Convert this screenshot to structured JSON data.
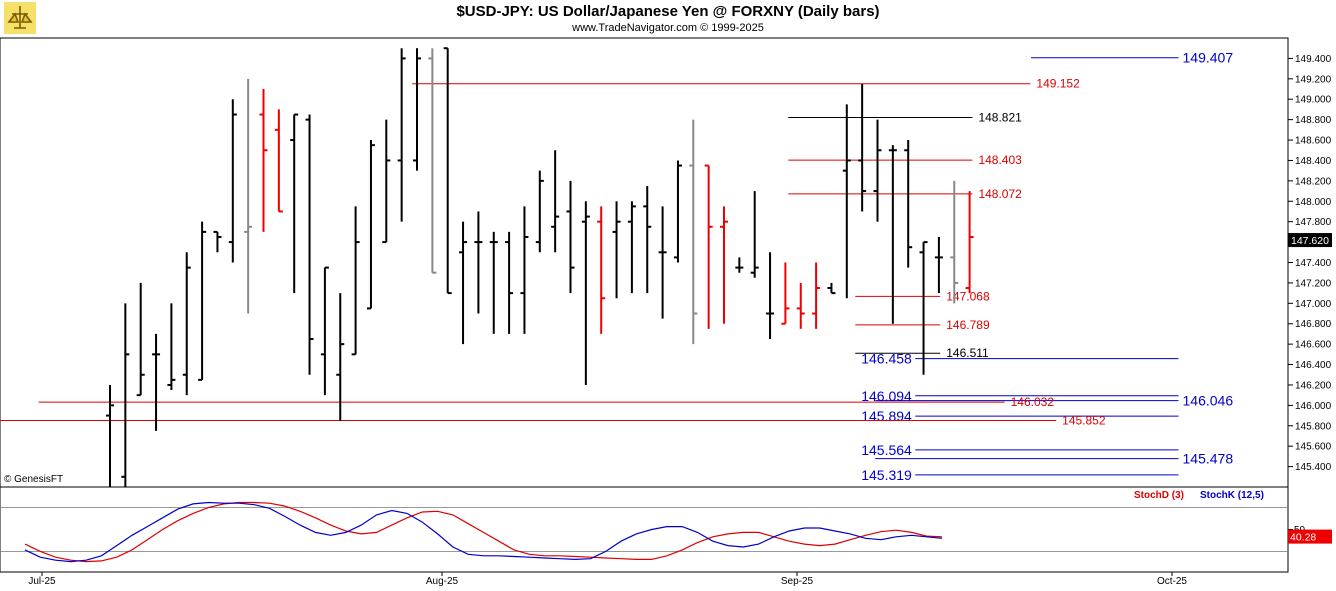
{
  "header": {
    "title": "$USD-JPY:  US Dollar/Japanese Yen @ FORXNY  (Daily bars)",
    "subtitle": "www.TradeNavigator.com © 1999-2025"
  },
  "copyright": "© GenesisFT",
  "colors": {
    "up": "#000000",
    "down": "#ee0000",
    "neutral": "#888888",
    "blue": "#0000cc",
    "red": "#dd0000"
  },
  "chart_data": [
    {
      "type": "ohlc",
      "ylim": [
        145.2,
        149.6
      ],
      "y_ticks": [
        "149.400",
        "149.200",
        "149.000",
        "148.800",
        "148.600",
        "148.400",
        "148.200",
        "148.000",
        "147.800",
        "147.600",
        "147.400",
        "147.200",
        "147.000",
        "146.800",
        "146.600",
        "146.400",
        "146.200",
        "146.000",
        "145.800",
        "145.600",
        "145.400"
      ],
      "x_ticks": [
        "Jul-25",
        "Aug-25",
        "Sep-25",
        "Oct-25"
      ],
      "last_price": "147.620",
      "bars": [
        {
          "o": 145.9,
          "h": 146.2,
          "l": 145.2,
          "c": 146.0,
          "k": "u"
        },
        {
          "o": 145.3,
          "h": 147.0,
          "l": 145.2,
          "c": 146.5,
          "k": "u"
        },
        {
          "o": 146.1,
          "h": 147.2,
          "l": 146.1,
          "c": 146.3,
          "k": "u"
        },
        {
          "o": 146.5,
          "h": 146.7,
          "l": 145.75,
          "c": 146.5,
          "k": "u"
        },
        {
          "o": 146.2,
          "h": 147.0,
          "l": 146.15,
          "c": 146.25,
          "k": "u"
        },
        {
          "o": 146.3,
          "h": 147.5,
          "l": 146.1,
          "c": 147.35,
          "k": "u"
        },
        {
          "o": 146.25,
          "h": 147.8,
          "l": 146.25,
          "c": 147.7,
          "k": "u"
        },
        {
          "o": 147.7,
          "h": 147.7,
          "l": 147.5,
          "c": 147.65,
          "k": "u"
        },
        {
          "o": 147.6,
          "h": 149.0,
          "l": 147.4,
          "c": 148.85,
          "k": "u"
        },
        {
          "o": 147.7,
          "h": 149.2,
          "l": 146.9,
          "c": 147.75,
          "k": "n"
        },
        {
          "o": 148.85,
          "h": 149.1,
          "l": 147.7,
          "c": 148.5,
          "k": "d"
        },
        {
          "o": 148.7,
          "h": 148.9,
          "l": 147.9,
          "c": 147.9,
          "k": "d"
        },
        {
          "o": 148.6,
          "h": 148.85,
          "l": 147.1,
          "c": 148.85,
          "k": "u"
        },
        {
          "o": 148.8,
          "h": 148.85,
          "l": 146.3,
          "c": 146.65,
          "k": "u"
        },
        {
          "o": 146.5,
          "h": 147.35,
          "l": 146.1,
          "c": 147.35,
          "k": "u"
        },
        {
          "o": 146.3,
          "h": 147.1,
          "l": 145.85,
          "c": 146.6,
          "k": "u"
        },
        {
          "o": 146.5,
          "h": 147.95,
          "l": 146.5,
          "c": 147.6,
          "k": "u"
        },
        {
          "o": 146.95,
          "h": 148.6,
          "l": 146.95,
          "c": 148.55,
          "k": "u"
        },
        {
          "o": 147.6,
          "h": 148.8,
          "l": 147.6,
          "c": 148.4,
          "k": "u"
        },
        {
          "o": 148.4,
          "h": 149.5,
          "l": 147.8,
          "c": 149.4,
          "k": "u"
        },
        {
          "o": 148.4,
          "h": 149.5,
          "l": 148.3,
          "c": 149.4,
          "k": "u"
        },
        {
          "o": 149.4,
          "h": 149.5,
          "l": 147.3,
          "c": 147.3,
          "k": "n"
        },
        {
          "o": 149.5,
          "h": 149.5,
          "l": 147.1,
          "c": 147.1,
          "k": "u"
        },
        {
          "o": 147.5,
          "h": 147.8,
          "l": 146.6,
          "c": 147.6,
          "k": "u"
        },
        {
          "o": 147.6,
          "h": 147.9,
          "l": 146.9,
          "c": 147.6,
          "k": "u"
        },
        {
          "o": 147.6,
          "h": 147.7,
          "l": 146.7,
          "c": 147.6,
          "k": "u"
        },
        {
          "o": 147.6,
          "h": 147.7,
          "l": 146.7,
          "c": 147.1,
          "k": "u"
        },
        {
          "o": 147.1,
          "h": 147.95,
          "l": 146.7,
          "c": 147.65,
          "k": "u"
        },
        {
          "o": 147.6,
          "h": 148.3,
          "l": 147.5,
          "c": 148.2,
          "k": "u"
        },
        {
          "o": 147.75,
          "h": 148.5,
          "l": 147.5,
          "c": 147.85,
          "k": "u"
        },
        {
          "o": 147.9,
          "h": 148.2,
          "l": 147.1,
          "c": 147.35,
          "k": "u"
        },
        {
          "o": 147.8,
          "h": 148.0,
          "l": 146.2,
          "c": 147.85,
          "k": "u"
        },
        {
          "o": 147.8,
          "h": 147.95,
          "l": 146.7,
          "c": 147.05,
          "k": "d"
        },
        {
          "o": 147.7,
          "h": 148.0,
          "l": 147.05,
          "c": 147.8,
          "k": "u"
        },
        {
          "o": 147.8,
          "h": 148.0,
          "l": 147.1,
          "c": 147.95,
          "k": "u"
        },
        {
          "o": 147.95,
          "h": 148.15,
          "l": 147.1,
          "c": 147.75,
          "k": "u"
        },
        {
          "o": 147.5,
          "h": 147.95,
          "l": 146.85,
          "c": 147.5,
          "k": "u"
        },
        {
          "o": 147.45,
          "h": 148.4,
          "l": 147.4,
          "c": 148.35,
          "k": "u"
        },
        {
          "o": 148.35,
          "h": 148.8,
          "l": 146.6,
          "c": 146.9,
          "k": "n"
        },
        {
          "o": 148.35,
          "h": 148.35,
          "l": 146.75,
          "c": 147.75,
          "k": "d"
        },
        {
          "o": 147.75,
          "h": 147.95,
          "l": 146.8,
          "c": 147.8,
          "k": "d"
        },
        {
          "o": 147.35,
          "h": 147.45,
          "l": 147.3,
          "c": 147.35,
          "k": "u"
        },
        {
          "o": 147.3,
          "h": 148.1,
          "l": 147.25,
          "c": 147.35,
          "k": "u"
        },
        {
          "o": 146.9,
          "h": 147.5,
          "l": 146.65,
          "c": 146.9,
          "k": "u"
        },
        {
          "o": 146.8,
          "h": 147.4,
          "l": 146.8,
          "c": 146.95,
          "k": "d"
        },
        {
          "o": 146.95,
          "h": 147.2,
          "l": 146.75,
          "c": 146.9,
          "k": "d"
        },
        {
          "o": 146.9,
          "h": 147.4,
          "l": 146.75,
          "c": 147.15,
          "k": "d"
        },
        {
          "o": 147.15,
          "h": 147.2,
          "l": 147.1,
          "c": 147.1,
          "k": "u"
        },
        {
          "o": 148.3,
          "h": 148.95,
          "l": 147.05,
          "c": 148.4,
          "k": "u"
        },
        {
          "o": 148.4,
          "h": 149.15,
          "l": 147.9,
          "c": 148.1,
          "k": "u"
        },
        {
          "o": 148.1,
          "h": 148.8,
          "l": 147.8,
          "c": 148.5,
          "k": "u"
        },
        {
          "o": 148.5,
          "h": 148.55,
          "l": 146.8,
          "c": 148.5,
          "k": "u"
        },
        {
          "o": 148.5,
          "h": 148.6,
          "l": 147.35,
          "c": 147.55,
          "k": "u"
        },
        {
          "o": 147.5,
          "h": 147.6,
          "l": 146.3,
          "c": 147.6,
          "k": "u"
        },
        {
          "o": 147.45,
          "h": 147.65,
          "l": 147.1,
          "c": 147.45,
          "k": "u"
        },
        {
          "o": 147.45,
          "h": 148.2,
          "l": 147.0,
          "c": 147.2,
          "k": "n"
        },
        {
          "o": 147.15,
          "h": 148.1,
          "l": 147.1,
          "c": 147.65,
          "k": "d"
        }
      ],
      "levels": [
        {
          "value": 149.407,
          "label": "149.407",
          "color": "blue",
          "from": 0.785,
          "to": 0.915,
          "label_side": "right"
        },
        {
          "value": 149.152,
          "label": "149.152",
          "color": "red",
          "from": 0.32,
          "to": 0.8,
          "label_side": "end"
        },
        {
          "value": 148.821,
          "label": "148.821",
          "color": "black",
          "from": 0.612,
          "to": 0.755,
          "label_side": "end"
        },
        {
          "value": 148.403,
          "label": "148.403",
          "color": "red",
          "from": 0.612,
          "to": 0.755,
          "label_side": "end"
        },
        {
          "value": 148.072,
          "label": "148.072",
          "color": "red",
          "from": 0.612,
          "to": 0.755,
          "label_side": "end"
        },
        {
          "value": 147.068,
          "label": "147.068",
          "color": "red",
          "from": 0.664,
          "to": 0.73,
          "label_side": "end"
        },
        {
          "value": 146.789,
          "label": "146.789",
          "color": "red",
          "from": 0.664,
          "to": 0.73,
          "label_side": "end"
        },
        {
          "value": 146.511,
          "label": "146.511",
          "color": "black",
          "from": 0.664,
          "to": 0.73,
          "label_side": "end"
        },
        {
          "value": 146.458,
          "label": "146.458",
          "color": "blue",
          "from": 0.664,
          "to": 0.915,
          "label_side": "start"
        },
        {
          "value": 146.094,
          "label": "146.094",
          "color": "blue",
          "from": 0.664,
          "to": 0.915,
          "label_side": "start"
        },
        {
          "value": 146.046,
          "label": "146.046",
          "color": "blue",
          "from": 0.664,
          "to": 0.915,
          "label_side": "right"
        },
        {
          "value": 146.032,
          "label": "146.032",
          "color": "red",
          "from": 0.03,
          "to": 0.78,
          "label_side": "end"
        },
        {
          "value": 145.894,
          "label": "145.894",
          "color": "blue",
          "from": 0.664,
          "to": 0.915,
          "label_side": "start"
        },
        {
          "value": 145.852,
          "label": "145.852",
          "color": "red",
          "from": 0.0,
          "to": 0.82,
          "label_side": "end"
        },
        {
          "value": 145.564,
          "label": "145.564",
          "color": "blue",
          "from": 0.664,
          "to": 0.915,
          "label_side": "start"
        },
        {
          "value": 145.478,
          "label": "145.478",
          "color": "blue",
          "from": 0.664,
          "to": 0.915,
          "label_side": "right"
        },
        {
          "value": 145.319,
          "label": "145.319",
          "color": "blue",
          "from": 0.664,
          "to": 0.915,
          "label_side": "start"
        }
      ]
    },
    {
      "type": "line",
      "title": "",
      "ylim": [
        0,
        100
      ],
      "y_ticks": [
        "50"
      ],
      "last_value": "40.28",
      "series": [
        {
          "name": "StochD (3)",
          "color": "#dd0000",
          "values": [
            30,
            20,
            12,
            8,
            6,
            7,
            12,
            22,
            36,
            50,
            62,
            72,
            80,
            85,
            87,
            87,
            86,
            82,
            75,
            66,
            56,
            48,
            44,
            46,
            56,
            66,
            74,
            75,
            70,
            58,
            46,
            34,
            22,
            16,
            14,
            14,
            13,
            12,
            11,
            10,
            9,
            9,
            14,
            22,
            32,
            40,
            44,
            46,
            46,
            40,
            34,
            30,
            28,
            30,
            36,
            42,
            47,
            49,
            46,
            41,
            40
          ]
        },
        {
          "name": "StochK (12,5)",
          "color": "#0000cc",
          "values": [
            22,
            12,
            8,
            6,
            8,
            14,
            28,
            42,
            54,
            66,
            78,
            85,
            87,
            86,
            86,
            84,
            79,
            68,
            56,
            46,
            42,
            46,
            56,
            70,
            76,
            72,
            60,
            44,
            26,
            16,
            14,
            14,
            13,
            12,
            11,
            10,
            9,
            10,
            20,
            34,
            44,
            50,
            54,
            54,
            46,
            34,
            28,
            26,
            30,
            40,
            48,
            52,
            52,
            48,
            44,
            38,
            36,
            40,
            42,
            40,
            38
          ]
        }
      ]
    }
  ]
}
